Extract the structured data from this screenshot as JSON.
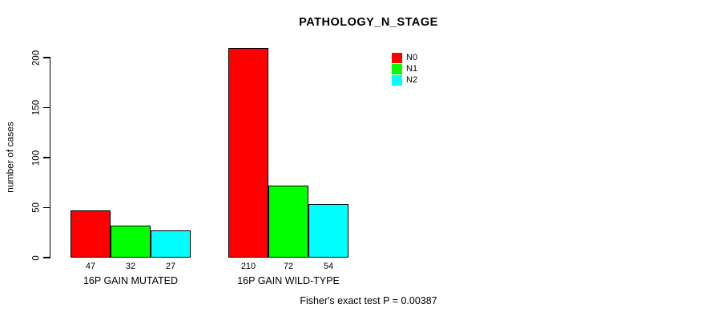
{
  "chart_data": {
    "type": "bar",
    "title": "PATHOLOGY_N_STAGE",
    "ylabel": "number of cases",
    "xlabel": "",
    "ylim": [
      0,
      200
    ],
    "yticks": [
      0,
      50,
      100,
      150,
      200
    ],
    "grid": false,
    "categories": [
      "16P GAIN MUTATED",
      "16P GAIN WILD-TYPE"
    ],
    "series": [
      {
        "name": "N0",
        "color": "#ff0000",
        "values": [
          47,
          210
        ]
      },
      {
        "name": "N1",
        "color": "#00ff00",
        "values": [
          32,
          72
        ]
      },
      {
        "name": "N2",
        "color": "#00ffff",
        "values": [
          27,
          54
        ]
      }
    ],
    "bar_value_labels": [
      [
        47,
        32,
        27
      ],
      [
        210,
        72,
        54
      ]
    ],
    "legend_position": "top-right",
    "legend_entries": [
      "N0",
      "N1",
      "N2"
    ],
    "annotation": "Fisher's exact test P = 0.00387",
    "axis_color": "#000000",
    "bar_border_color": "#000000"
  }
}
